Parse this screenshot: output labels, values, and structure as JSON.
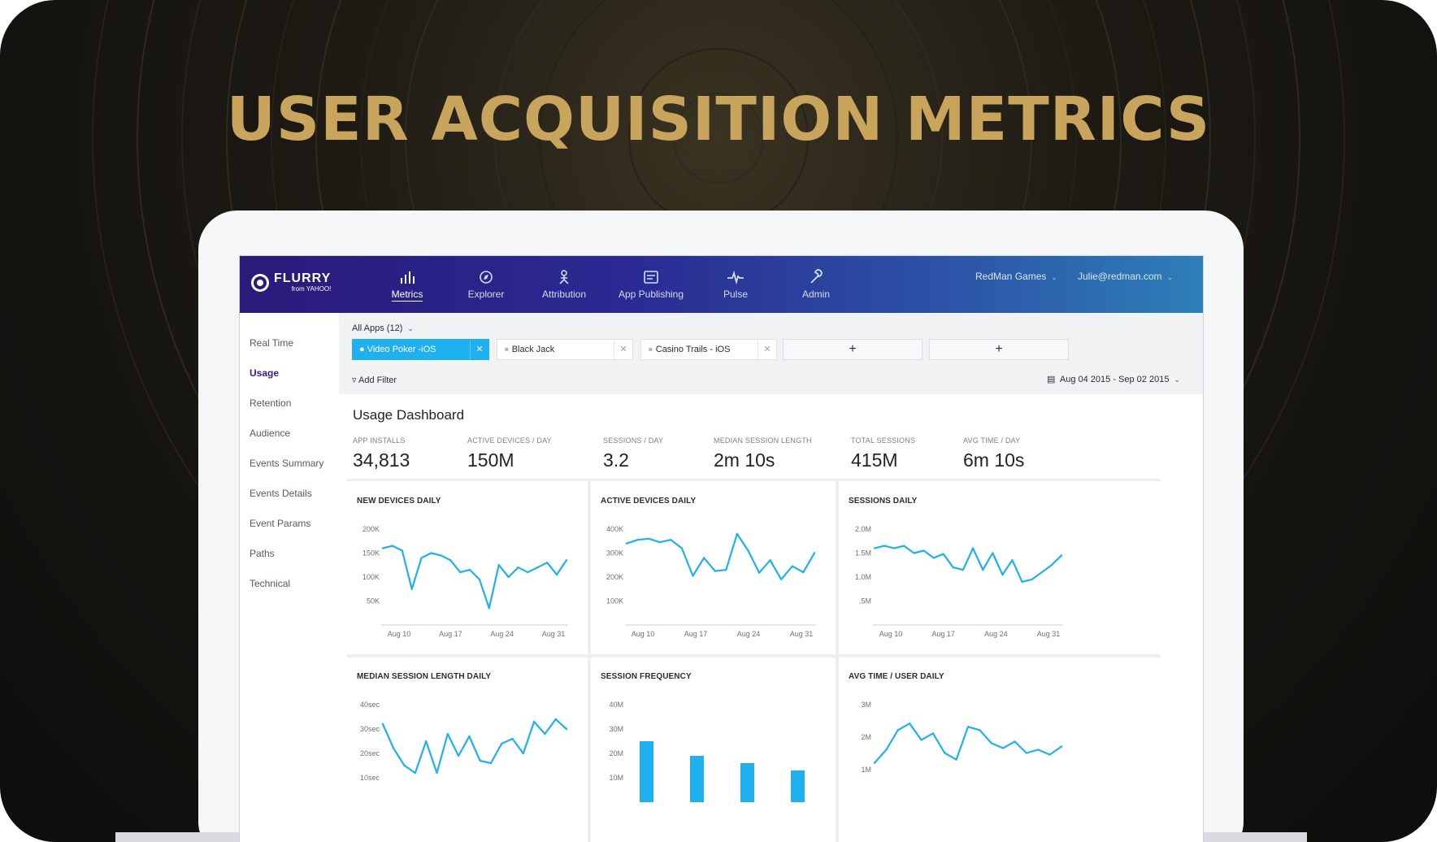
{
  "headline": "USER ACQUISITION METRICS",
  "colors": {
    "gold": "#c8a45c",
    "accent": "#1fb0f0",
    "nav_start": "#2a1a7a",
    "nav_end": "#2d7fb8",
    "active_side": "#3a1c8c"
  },
  "logo": {
    "name": "FLURRY",
    "sub": "from YAHOO!"
  },
  "topnav": {
    "items": [
      {
        "label": "Metrics",
        "icon": "bar-chart-icon",
        "active": true
      },
      {
        "label": "Explorer",
        "icon": "compass-icon"
      },
      {
        "label": "Attribution",
        "icon": "attribution-icon"
      },
      {
        "label": "App Publishing",
        "icon": "publishing-icon"
      },
      {
        "label": "Pulse",
        "icon": "pulse-icon"
      },
      {
        "label": "Admin",
        "icon": "wrench-icon"
      }
    ],
    "org": "RedMan Games",
    "user": "Julie@redman.com"
  },
  "sidebar": {
    "items": [
      {
        "label": "Real Time"
      },
      {
        "label": "Usage",
        "active": true
      },
      {
        "label": "Retention"
      },
      {
        "label": "Audience"
      },
      {
        "label": "Events Summary"
      },
      {
        "label": "Events Details"
      },
      {
        "label": "Event Params"
      },
      {
        "label": "Paths"
      },
      {
        "label": "Technical"
      }
    ]
  },
  "filters": {
    "all_apps": "All Apps (12)",
    "apps": [
      {
        "name": "Video Poker -iOS",
        "selected": true
      },
      {
        "name": "Black Jack"
      },
      {
        "name": "Casino Trails - iOS"
      }
    ],
    "add_label": "+",
    "add_filter": "Add Filter",
    "date_range": "Aug 04 2015 - Sep 02 2015"
  },
  "dashboard": {
    "title": "Usage Dashboard",
    "stats": [
      {
        "label": "APP INSTALLS",
        "value": "34,813"
      },
      {
        "label": "ACTIVE DEVICES / DAY",
        "value": "150M"
      },
      {
        "label": "SESSIONS / DAY",
        "value": "3.2"
      },
      {
        "label": "MEDIAN SESSION LENGTH",
        "value": "2m 10s"
      },
      {
        "label": "TOTAL SESSIONS",
        "value": "415M"
      },
      {
        "label": "AVG TIME / DAY",
        "value": "6m 10s"
      }
    ]
  },
  "chart_data": [
    {
      "type": "line",
      "title": "NEW DEVICES DAILY",
      "x_ticks": [
        "Aug 10",
        "Aug 17",
        "Aug 24",
        "Aug 31"
      ],
      "y_ticks": [
        "200K",
        "150K",
        "100K",
        "50K"
      ],
      "ylim": [
        0,
        215000
      ],
      "values": [
        160000,
        165000,
        155000,
        75000,
        140000,
        150000,
        145000,
        135000,
        110000,
        115000,
        95000,
        35000,
        125000,
        100000,
        120000,
        110000,
        120000,
        130000,
        105000,
        135000
      ]
    },
    {
      "type": "line",
      "title": "ACTIVE DEVICES DAILY",
      "x_ticks": [
        "Aug 10",
        "Aug 17",
        "Aug 24",
        "Aug 31"
      ],
      "y_ticks": [
        "400K",
        "300K",
        "200K",
        "100K"
      ],
      "ylim": [
        0,
        430000
      ],
      "values": [
        340000,
        355000,
        360000,
        345000,
        355000,
        320000,
        205000,
        280000,
        225000,
        230000,
        380000,
        310000,
        218000,
        270000,
        190000,
        245000,
        220000,
        300000
      ]
    },
    {
      "type": "line",
      "title": "SESSIONS DAILY",
      "x_ticks": [
        "Aug 10",
        "Aug 17",
        "Aug 24",
        "Aug 31"
      ],
      "y_ticks": [
        "2.0M",
        "1.5M",
        "1.0M",
        ".5M"
      ],
      "ylim": [
        0,
        2150000
      ],
      "values": [
        1600000,
        1650000,
        1600000,
        1650000,
        1500000,
        1550000,
        1400000,
        1480000,
        1200000,
        1150000,
        1600000,
        1150000,
        1500000,
        1050000,
        1350000,
        900000,
        950000,
        1100000,
        1250000,
        1450000
      ]
    },
    {
      "type": "line",
      "title": "MEDIAN SESSION LENGTH DAILY",
      "x_ticks": [],
      "y_ticks": [
        "40sec",
        "30sec",
        "20sec",
        "10sec"
      ],
      "ylim": [
        0,
        43000
      ],
      "values": [
        32000,
        22000,
        15000,
        12000,
        25000,
        12000,
        28000,
        19000,
        27000,
        17000,
        16000,
        24000,
        26000,
        20000,
        33000,
        28000,
        34000,
        30000
      ]
    },
    {
      "type": "bar",
      "title": "SESSION FREQUENCY",
      "x_ticks": [],
      "y_ticks": [
        "40M",
        "30M",
        "20M",
        "10M"
      ],
      "ylim": [
        0,
        43000000
      ],
      "values": [
        25000000,
        19000000,
        16000000,
        13000000
      ]
    },
    {
      "type": "line",
      "title": "AVG TIME / USER DAILY",
      "x_ticks": [],
      "y_ticks": [
        "3M",
        "2M",
        "1M"
      ],
      "ylim": [
        0,
        3200000
      ],
      "values": [
        1200000,
        1600000,
        2200000,
        2400000,
        1900000,
        2100000,
        1500000,
        1300000,
        2300000,
        2200000,
        1800000,
        1650000,
        1850000,
        1500000,
        1600000,
        1450000,
        1700000
      ]
    }
  ]
}
